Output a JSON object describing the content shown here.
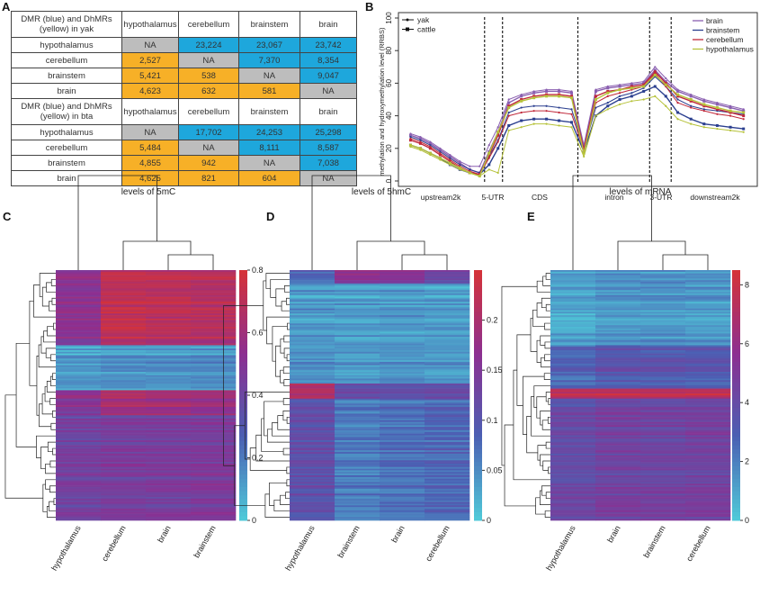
{
  "panels": {
    "a": "A",
    "b": "B",
    "c": "C",
    "d": "D",
    "e": "E"
  },
  "colors": {
    "na": "#bdbdbd",
    "blue": "#1ea7dc",
    "yellow": "#f7b027"
  },
  "table_a": [
    {
      "header": [
        "DMR (blue) and DhMRs (yellow) in yak",
        "hypothalamus",
        "cerebellum",
        "brainstem",
        "brain"
      ],
      "rows": [
        {
          "label": "hypothalamus",
          "cells": [
            [
              "NA",
              "na"
            ],
            [
              "23,224",
              "blue"
            ],
            [
              "23,067",
              "blue"
            ],
            [
              "23,742",
              "blue"
            ]
          ]
        },
        {
          "label": "cerebellum",
          "cells": [
            [
              "2,527",
              "yellow"
            ],
            [
              "NA",
              "na"
            ],
            [
              "7,370",
              "blue"
            ],
            [
              "8,354",
              "blue"
            ]
          ]
        },
        {
          "label": "brainstem",
          "cells": [
            [
              "5,421",
              "yellow"
            ],
            [
              "538",
              "yellow"
            ],
            [
              "NA",
              "na"
            ],
            [
              "9,047",
              "blue"
            ]
          ]
        },
        {
          "label": "brain",
          "cells": [
            [
              "4,623",
              "yellow"
            ],
            [
              "632",
              "yellow"
            ],
            [
              "581",
              "yellow"
            ],
            [
              "NA",
              "na"
            ]
          ]
        }
      ]
    },
    {
      "header": [
        "DMR (blue) and DhMRs (yellow) in bta",
        "hypothalamus",
        "cerebellum",
        "brainstem",
        "brain"
      ],
      "rows": [
        {
          "label": "hypothalamus",
          "cells": [
            [
              "NA",
              "na"
            ],
            [
              "17,702",
              "blue"
            ],
            [
              "24,253",
              "blue"
            ],
            [
              "25,298",
              "blue"
            ]
          ]
        },
        {
          "label": "cerebellum",
          "cells": [
            [
              "5,484",
              "yellow"
            ],
            [
              "NA",
              "na"
            ],
            [
              "8,111",
              "blue"
            ],
            [
              "8,587",
              "blue"
            ]
          ]
        },
        {
          "label": "brainstem",
          "cells": [
            [
              "4,855",
              "yellow"
            ],
            [
              "942",
              "yellow"
            ],
            [
              "NA",
              "na"
            ],
            [
              "7,038",
              "blue"
            ]
          ]
        },
        {
          "label": "brain",
          "cells": [
            [
              "4,625",
              "yellow"
            ],
            [
              "821",
              "yellow"
            ],
            [
              "604",
              "yellow"
            ],
            [
              "NA",
              "na"
            ]
          ]
        }
      ]
    }
  ],
  "chart_data": [
    {
      "type": "line",
      "ylabel": "methylation and hydroxymethylation level (RRBS)",
      "ylim": [
        0,
        100
      ],
      "yticks": [
        0,
        20,
        40,
        60,
        80,
        100
      ],
      "regions": [
        "upstream2k",
        "5-UTR",
        "CDS",
        "intron",
        "3-UTR",
        "downstream2k"
      ],
      "species_legend": [
        {
          "name": "yak",
          "marker": "dot"
        },
        {
          "name": "cattle",
          "marker": "square"
        }
      ],
      "tissue_legend": [
        {
          "name": "brain",
          "color": "#8a5fb0"
        },
        {
          "name": "brainstem",
          "color": "#2b3f8f"
        },
        {
          "name": "cerebellum",
          "color": "#c0283a"
        },
        {
          "name": "hypothalamus",
          "color": "#b6c23a"
        }
      ],
      "legend_placement": "top-left and top-right",
      "series": [
        {
          "species": "yak",
          "tissue": "brain",
          "values": {
            "upstream2k": [
              29,
              27,
              24,
              20,
              16,
              12,
              9,
              9
            ],
            "5-UTR": [
              22,
              33
            ],
            "CDS": [
              50,
              53,
              55,
              56,
              56,
              55
            ],
            "intron": [
              22,
              56,
              58,
              59,
              60,
              61
            ],
            "3-UTR": [
              70,
              63
            ],
            "downstream2k": [
              56,
              53,
              50,
              48,
              46,
              44
            ]
          }
        },
        {
          "species": "cattle",
          "tissue": "brain",
          "values": {
            "upstream2k": [
              28,
              26,
              23,
              19,
              15,
              11,
              7,
              5
            ],
            "5-UTR": [
              18,
              30
            ],
            "CDS": [
              48,
              52,
              54,
              55,
              55,
              54
            ],
            "intron": [
              20,
              55,
              57,
              58,
              59,
              60
            ],
            "3-UTR": [
              68,
              61
            ],
            "downstream2k": [
              55,
              52,
              49,
              47,
              45,
              43
            ]
          }
        },
        {
          "species": "yak",
          "tissue": "brainstem",
          "values": {
            "upstream2k": [
              27,
              25,
              22,
              18,
              14,
              10,
              7,
              5
            ],
            "5-UTR": [
              15,
              25
            ],
            "CDS": [
              42,
              45,
              46,
              46,
              45,
              44
            ],
            "intron": [
              20,
              45,
              48,
              52,
              54,
              57
            ],
            "3-UTR": [
              64,
              58
            ],
            "downstream2k": [
              50,
              46,
              44,
              43,
              42,
              41
            ]
          }
        },
        {
          "species": "cattle",
          "tissue": "brainstem",
          "values": {
            "upstream2k": [
              22,
              20,
              17,
              14,
              10,
              7,
              5,
              4
            ],
            "5-UTR": [
              10,
              20
            ],
            "CDS": [
              34,
              37,
              38,
              38,
              37,
              36
            ],
            "intron": [
              18,
              40,
              46,
              50,
              52,
              55
            ],
            "3-UTR": [
              58,
              52
            ],
            "downstream2k": [
              42,
              38,
              35,
              34,
              33,
              32
            ]
          }
        },
        {
          "species": "yak",
          "tissue": "cerebellum",
          "values": {
            "upstream2k": [
              26,
              24,
              21,
              17,
              13,
              9,
              6,
              4
            ],
            "5-UTR": [
              14,
              24
            ],
            "CDS": [
              40,
              42,
              43,
              43,
              42,
              41
            ],
            "intron": [
              19,
              48,
              52,
              54,
              56,
              58
            ],
            "3-UTR": [
              66,
              58
            ],
            "downstream2k": [
              48,
              45,
              43,
              41,
              40,
              38
            ]
          }
        },
        {
          "species": "cattle",
          "tissue": "cerebellum",
          "values": {
            "upstream2k": [
              25,
              23,
              20,
              16,
              12,
              8,
              5,
              4
            ],
            "5-UTR": [
              16,
              28
            ],
            "CDS": [
              46,
              50,
              52,
              53,
              53,
              52
            ],
            "intron": [
              19,
              52,
              55,
              56,
              58,
              59
            ],
            "3-UTR": [
              67,
              60
            ],
            "downstream2k": [
              52,
              49,
              46,
              44,
              42,
              40
            ]
          }
        },
        {
          "species": "yak",
          "tissue": "hypothalamus",
          "values": {
            "upstream2k": [
              21,
              19,
              16,
              13,
              10,
              7,
              5,
              3
            ],
            "5-UTR": [
              7,
              5
            ],
            "CDS": [
              31,
              33,
              35,
              35,
              34,
              33
            ],
            "intron": [
              15,
              40,
              44,
              47,
              49,
              50
            ],
            "3-UTR": [
              52,
              46
            ],
            "downstream2k": [
              38,
              35,
              33,
              32,
              31,
              30
            ]
          }
        },
        {
          "species": "cattle",
          "tissue": "hypothalamus",
          "values": {
            "upstream2k": [
              22,
              20,
              17,
              14,
              11,
              8,
              5,
              3
            ],
            "5-UTR": [
              17,
              30
            ],
            "CDS": [
              45,
              49,
              51,
              52,
              52,
              51
            ],
            "intron": [
              17,
              50,
              54,
              56,
              57,
              58
            ],
            "3-UTR": [
              65,
              59
            ],
            "downstream2k": [
              53,
              50,
              47,
              45,
              43,
              42
            ]
          }
        }
      ]
    },
    {
      "type": "heatmap",
      "title": "levels of 5mC",
      "columns": [
        "hypothalamus",
        "cerebellum",
        "brain",
        "brainstem"
      ],
      "color_scale": {
        "min": 0,
        "max": 0.8,
        "ticks": [
          "0.8",
          "0.6",
          "0.4",
          "0.2",
          "0"
        ],
        "colors": [
          "#4fc8d8",
          "#4b5fb3",
          "#8c2f91",
          "#d4323a"
        ]
      },
      "row_bands": [
        {
          "share": 0.3,
          "values": [
            0.52,
            0.72,
            0.7,
            0.68
          ]
        },
        {
          "share": 0.18,
          "values": [
            0.1,
            0.12,
            0.12,
            0.13
          ]
        },
        {
          "share": 0.1,
          "values": [
            0.5,
            0.62,
            0.6,
            0.58
          ]
        },
        {
          "share": 0.42,
          "values": [
            0.42,
            0.45,
            0.45,
            0.46
          ]
        }
      ]
    },
    {
      "type": "heatmap",
      "title": "levels of 5hmC",
      "columns": [
        "hypothalamus",
        "brainstem",
        "brain",
        "cerebellum"
      ],
      "color_scale": {
        "min": 0,
        "max": 0.25,
        "ticks": [
          "0.2",
          "0.15",
          "0.1",
          "0.05",
          "0"
        ],
        "colors": [
          "#4fc8d8",
          "#4b5fb3",
          "#8c2f91",
          "#d4323a"
        ]
      },
      "row_bands": [
        {
          "share": 0.05,
          "values": [
            0.08,
            0.17,
            0.16,
            0.13
          ]
        },
        {
          "share": 0.4,
          "values": [
            0.04,
            0.035,
            0.04,
            0.035
          ]
        },
        {
          "share": 0.06,
          "values": [
            0.2,
            0.11,
            0.1,
            0.11
          ]
        },
        {
          "share": 0.49,
          "values": [
            0.11,
            0.06,
            0.07,
            0.08
          ]
        }
      ]
    },
    {
      "type": "heatmap",
      "title": "levels of mRNA",
      "columns": [
        "hypothalamus",
        "brain",
        "brainstem",
        "cerebellum"
      ],
      "color_scale": {
        "min": 0,
        "max": 8.5,
        "ticks": [
          "8",
          "6",
          "4",
          "2",
          "0"
        ],
        "colors": [
          "#4fc8d8",
          "#4b5fb3",
          "#8c2f91",
          "#d4323a"
        ]
      },
      "row_bands": [
        {
          "share": 0.3,
          "values": [
            0.8,
            1.3,
            1.3,
            1.2
          ]
        },
        {
          "share": 0.17,
          "values": [
            2.8,
            3.4,
            3.4,
            3.3
          ]
        },
        {
          "share": 0.04,
          "values": [
            7.8,
            7.6,
            7.6,
            7.6
          ]
        },
        {
          "share": 0.49,
          "values": [
            4.0,
            4.5,
            4.4,
            4.5
          ]
        }
      ]
    }
  ]
}
